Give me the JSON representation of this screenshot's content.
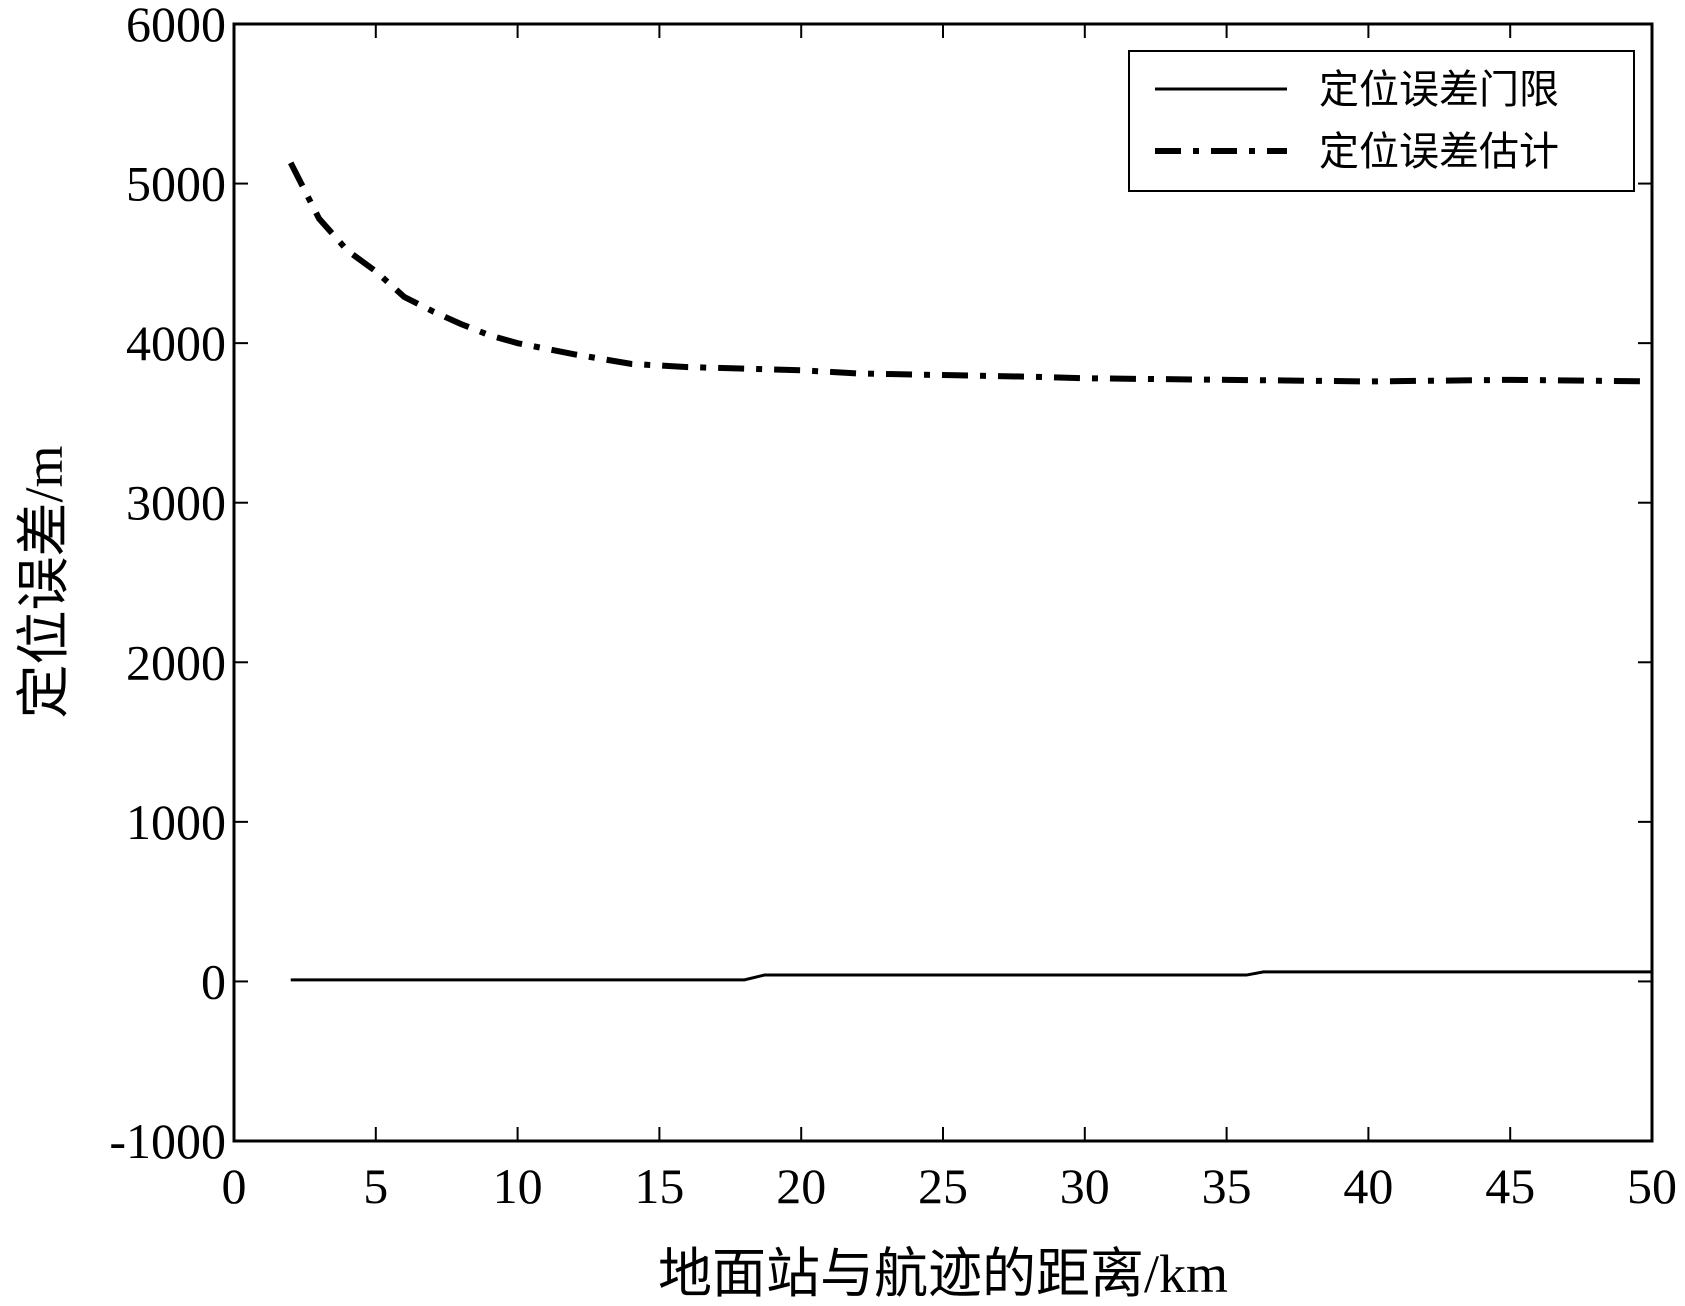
{
  "chart_data": {
    "type": "line",
    "xlabel": "地面站与航迹的距离/km",
    "ylabel": "定位误差/m",
    "xlim": [
      0,
      50
    ],
    "xticks": [
      0,
      5,
      10,
      15,
      20,
      25,
      30,
      35,
      40,
      45,
      50
    ],
    "ylim": [
      -1000,
      6000
    ],
    "yticks": [
      -1000,
      0,
      1000,
      2000,
      3000,
      4000,
      5000,
      6000
    ],
    "grid": false,
    "legend": "upper right",
    "series": [
      {
        "name": "定位误差门限",
        "color": "#000000",
        "dash": "solid",
        "x": [
          2,
          18,
          18.7,
          35.7,
          36.3,
          50
        ],
        "values": [
          10,
          10,
          40,
          40,
          60,
          60
        ]
      },
      {
        "name": "定位误差估计",
        "color": "#000000",
        "dash": "dashdot",
        "x": [
          2,
          3,
          4,
          5,
          6,
          7,
          8,
          9,
          10,
          12,
          14,
          16,
          18,
          20,
          22,
          25,
          28,
          30,
          35,
          40,
          45,
          50
        ],
        "values": [
          5130,
          4780,
          4580,
          4450,
          4290,
          4200,
          4120,
          4050,
          4000,
          3930,
          3870,
          3850,
          3840,
          3830,
          3810,
          3800,
          3790,
          3780,
          3770,
          3760,
          3770,
          3760
        ]
      }
    ]
  }
}
